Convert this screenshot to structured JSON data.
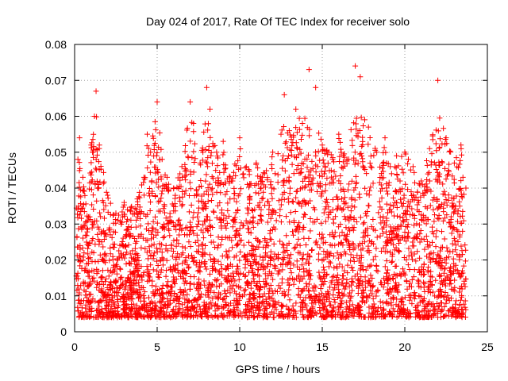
{
  "chart_data": {
    "type": "scatter",
    "title": "Day 024 of 2017, Rate Of TEC Index for receiver solo",
    "xlabel": "GPS time / hours",
    "ylabel": "ROTI / TECUs",
    "xlim": [
      0,
      25
    ],
    "ylim": [
      0,
      0.08
    ],
    "xticks": [
      "0",
      "5",
      "10",
      "15",
      "20",
      "25"
    ],
    "yticks": [
      "0",
      "0.01",
      "0.02",
      "0.03",
      "0.04",
      "0.05",
      "0.06",
      "0.07",
      "0.08"
    ],
    "grid": true,
    "marker": "plus",
    "color": "#ff0000",
    "series": [
      {
        "x": [
          0.2,
          0.3,
          0.5,
          0.8,
          1.0,
          1.2,
          1.3,
          1.5,
          2.0,
          2.5,
          3.0,
          3.2,
          3.8,
          4.2,
          4.4,
          4.6,
          5.0,
          5.3,
          5.6,
          6.0,
          6.5,
          7.0,
          7.2,
          7.6,
          8.0,
          8.2,
          8.6,
          9.0,
          9.5,
          10.0,
          10.4,
          11.0,
          11.5,
          12.0,
          12.5,
          12.7,
          13.0,
          13.4,
          13.8,
          14.2,
          14.6,
          15.0,
          15.4,
          16.0,
          16.5,
          17.0,
          17.3,
          17.8,
          18.3,
          18.8,
          19.2,
          19.5,
          20.0,
          20.5,
          21.0,
          21.5,
          22.0,
          22.5,
          23.0,
          23.4,
          23.7
        ],
        "y": [
          0.048,
          0.054,
          0.043,
          0.031,
          0.052,
          0.06,
          0.067,
          0.052,
          0.038,
          0.033,
          0.036,
          0.034,
          0.037,
          0.043,
          0.055,
          0.05,
          0.064,
          0.048,
          0.043,
          0.04,
          0.046,
          0.064,
          0.058,
          0.047,
          0.068,
          0.062,
          0.05,
          0.053,
          0.042,
          0.054,
          0.046,
          0.047,
          0.044,
          0.05,
          0.055,
          0.066,
          0.056,
          0.062,
          0.058,
          0.073,
          0.068,
          0.052,
          0.05,
          0.055,
          0.048,
          0.074,
          0.071,
          0.057,
          0.05,
          0.054,
          0.044,
          0.049,
          0.05,
          0.046,
          0.042,
          0.051,
          0.07,
          0.054,
          0.047,
          0.052,
          0.04
        ]
      }
    ]
  }
}
